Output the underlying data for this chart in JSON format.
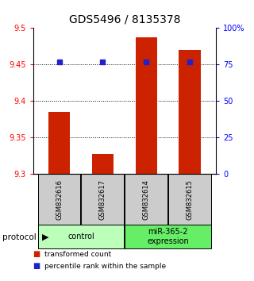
{
  "title": "GDS5496 / 8135378",
  "samples": [
    "GSM832616",
    "GSM832617",
    "GSM832614",
    "GSM832615"
  ],
  "bar_values": [
    9.385,
    9.328,
    9.487,
    9.47
  ],
  "percentile_values": [
    9.454,
    9.454,
    9.454,
    9.454
  ],
  "ylim_left": [
    9.3,
    9.5
  ],
  "ylim_right": [
    0,
    100
  ],
  "yticks_left": [
    9.3,
    9.35,
    9.4,
    9.45,
    9.5
  ],
  "yticks_right": [
    0,
    25,
    50,
    75,
    100
  ],
  "ytick_labels_right": [
    "0",
    "25",
    "50",
    "75",
    "100%"
  ],
  "bar_color": "#cc2200",
  "dot_color": "#2222cc",
  "groups": [
    {
      "label": "control",
      "indices": [
        0,
        1
      ],
      "color": "#bbffbb"
    },
    {
      "label": "miR-365-2\nexpression",
      "indices": [
        2,
        3
      ],
      "color": "#66ee66"
    }
  ],
  "legend_items": [
    {
      "label": "transformed count",
      "color": "#cc2200"
    },
    {
      "label": "percentile rank within the sample",
      "color": "#2222cc"
    }
  ],
  "protocol_label": "protocol",
  "background_color": "#ffffff",
  "sample_box_color": "#cccccc",
  "bar_width": 0.5,
  "title_fontsize": 10,
  "tick_fontsize": 7,
  "sample_fontsize": 6,
  "legend_fontsize": 6.5,
  "group_fontsize": 7
}
